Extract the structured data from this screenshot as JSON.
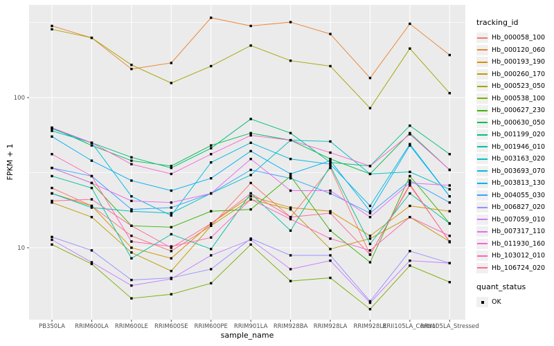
{
  "figure": {
    "background": "#FFFFFF",
    "panel_background": "#EBEBEB",
    "grid_color": "#FFFFFF",
    "tick_color": "#333333",
    "tick_label_color": "#4D4D4D",
    "axis_title_color": "#000000"
  },
  "axes": {
    "x_title": "sample_name",
    "y_title": "FPKM + 1",
    "y_tick_labels": [
      "100",
      "10"
    ]
  },
  "legend": {
    "tracking_title": "tracking_id",
    "quant_title": "quant_status",
    "quant_item_label": "OK"
  },
  "chart_data": {
    "type": "line",
    "title": "",
    "xlabel": "sample_name",
    "ylabel": "FPKM + 1",
    "y_scale": "log10",
    "y_ticks": [
      10,
      100
    ],
    "y_minor_ticks": [
      31.6,
      316
    ],
    "ylim": [
      3.3,
      414
    ],
    "grid": true,
    "legend_position": "right",
    "point_marker": "small black square (quant_status = OK)",
    "x_categories": [
      "PB350LA",
      "RRIM600LA",
      "RRIM600LE",
      "RRIM600SE",
      "RRIM600PE",
      "RRIM901LA",
      "RRIM928BA",
      "RRIM928LA",
      "RRIM928LE",
      "RRII105LA_Control",
      "RRII105LA_Stressed"
    ],
    "series": [
      {
        "name": "Hb_000058_100",
        "color": "#F8766D",
        "values": [
          25,
          19,
          12,
          9.5,
          14,
          27,
          16,
          34,
          9,
          26,
          11
        ]
      },
      {
        "name": "Hb_000120_060",
        "color": "#EA8331",
        "values": [
          300,
          250,
          155,
          170,
          340,
          300,
          318,
          265,
          135,
          310,
          192
        ]
      },
      {
        "name": "Hb_000193_190",
        "color": "#D89000",
        "values": [
          23,
          19,
          10,
          8.5,
          14.5,
          22,
          18.5,
          17.5,
          12,
          19,
          17.5
        ]
      },
      {
        "name": "Hb_000260_170",
        "color": "#C09B00",
        "values": [
          20,
          16,
          9.3,
          7,
          14,
          21,
          18,
          9.8,
          11.5,
          16,
          11
        ]
      },
      {
        "name": "Hb_000523_050",
        "color": "#A3A500",
        "values": [
          285,
          250,
          165,
          125,
          162,
          222,
          176,
          162,
          85,
          212,
          107
        ]
      },
      {
        "name": "Hb_000538_100",
        "color": "#7CAE00",
        "values": [
          10.5,
          7.8,
          4.6,
          4.9,
          5.8,
          10.5,
          6,
          6.3,
          3.9,
          7.6,
          5.9
        ]
      },
      {
        "name": "Hb_000627_230",
        "color": "#39B600",
        "values": [
          34,
          27,
          14,
          13.7,
          17.5,
          18,
          30,
          13,
          8,
          30,
          14.5
        ]
      },
      {
        "name": "Hb_000630_050",
        "color": "#00BB4E",
        "values": [
          63,
          48,
          38,
          35,
          48,
          58,
          52,
          39,
          31,
          58,
          33
        ]
      },
      {
        "name": "Hb_001199_020",
        "color": "#00BF7D",
        "values": [
          62,
          50,
          40,
          34,
          46,
          72,
          58,
          37,
          35,
          65,
          42
        ]
      },
      {
        "name": "Hb_001946_010",
        "color": "#00C1A3",
        "values": [
          30,
          25,
          8.5,
          12.3,
          9.8,
          23,
          13,
          35,
          10.6,
          23,
          14.5
        ]
      },
      {
        "name": "Hb_003163_020",
        "color": "#00BFC4",
        "values": [
          23,
          18.5,
          17.5,
          17,
          23,
          30.5,
          52,
          51,
          31,
          32,
          24.5
        ]
      },
      {
        "name": "Hb_003693_070",
        "color": "#00BAE0",
        "values": [
          60,
          50,
          22,
          16.4,
          37,
          50,
          39,
          36,
          19,
          49,
          22
        ]
      },
      {
        "name": "Hb_003813_130",
        "color": "#00B0F6",
        "values": [
          55,
          38,
          28,
          24,
          29,
          44,
          31,
          38,
          17.5,
          48,
          22
        ]
      },
      {
        "name": "Hb_004055_030",
        "color": "#35A2FF",
        "values": [
          34,
          30,
          18,
          18.5,
          23,
          33,
          29,
          23,
          17,
          28,
          20
        ]
      },
      {
        "name": "Hb_006827_020",
        "color": "#9590FF",
        "values": [
          11.8,
          9.6,
          6.1,
          6.3,
          7.2,
          11.5,
          8.9,
          8.9,
          4.4,
          9.5,
          7.9
        ]
      },
      {
        "name": "Hb_007059_010",
        "color": "#C77CFF",
        "values": [
          11.3,
          8,
          5.6,
          6.2,
          8.9,
          11.3,
          7.2,
          8.2,
          4.3,
          8.2,
          7.9
        ]
      },
      {
        "name": "Hb_007317_110",
        "color": "#E76BF3",
        "values": [
          34,
          27,
          20.5,
          20,
          23,
          39,
          24,
          24,
          16,
          27,
          26
        ]
      },
      {
        "name": "Hb_011930_160",
        "color": "#FA62DB",
        "values": [
          63,
          50,
          36,
          31,
          42,
          56,
          52,
          43,
          35,
          57,
          33
        ]
      },
      {
        "name": "Hb_103012_010",
        "color": "#FF62BC",
        "values": [
          42,
          30,
          11,
          10.2,
          11.7,
          21,
          15.5,
          11.5,
          9.6,
          16,
          12
        ]
      },
      {
        "name": "Hb_106724_020",
        "color": "#FF6A98",
        "values": [
          20.5,
          21,
          14,
          10,
          14.5,
          23,
          16,
          17,
          9,
          26.5,
          10.9
        ]
      }
    ]
  }
}
